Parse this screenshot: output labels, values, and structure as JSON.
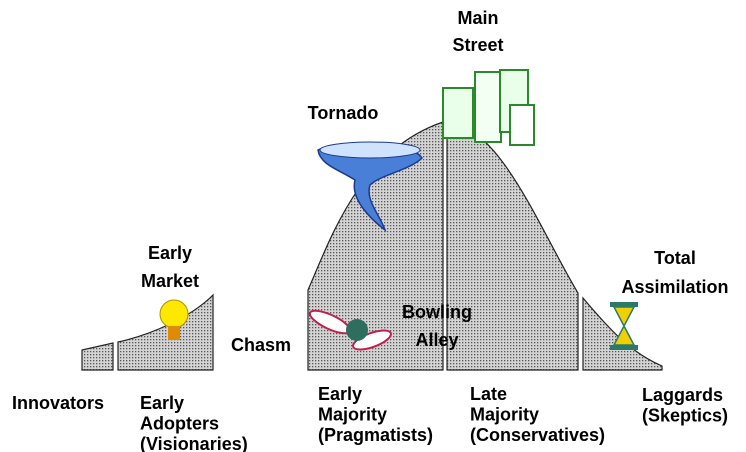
{
  "annotations": {
    "main_street": [
      "Main",
      "Street"
    ],
    "tornado": "Tornado",
    "early_market": [
      "Early",
      "Market"
    ],
    "total_assimilation": [
      "Total",
      "Assimilation"
    ],
    "chasm": "Chasm",
    "bowling_alley": [
      "Bowling",
      "Alley"
    ]
  },
  "segments": [
    {
      "label": [
        "Innovators"
      ]
    },
    {
      "label": [
        "Early",
        "Adopters",
        "(Visionaries)"
      ]
    },
    {
      "label": [
        "Early",
        "Majority",
        "(Pragmatists)"
      ]
    },
    {
      "label": [
        "Late",
        "Majority",
        "(Conservatives)"
      ]
    },
    {
      "label": [
        "Laggards",
        "(Skeptics)"
      ]
    }
  ]
}
